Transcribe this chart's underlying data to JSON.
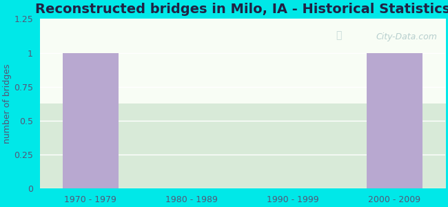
{
  "title": "Reconstructed bridges in Milo, IA - Historical Statistics",
  "categories": [
    "1970 - 1979",
    "1980 - 1989",
    "1990 - 1999",
    "2000 - 2009"
  ],
  "values": [
    1,
    0,
    0,
    1
  ],
  "bar_color": "#b8a8d0",
  "ylabel": "number of bridges",
  "ylim": [
    0,
    1.25
  ],
  "yticks": [
    0,
    0.25,
    0.5,
    0.75,
    1,
    1.25
  ],
  "background_outer": "#00e8e8",
  "background_plot_top": "#eaf4e8",
  "background_plot_bottom": "#ddeedd",
  "grid_color": "#ffffff",
  "title_fontsize": 14,
  "ylabel_fontsize": 9,
  "tick_fontsize": 9,
  "watermark": "City-Data.com"
}
